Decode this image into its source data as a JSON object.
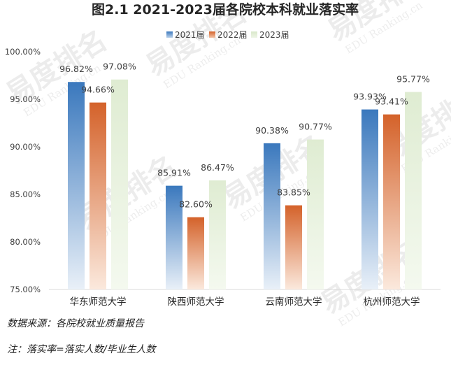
{
  "chart_data": {
    "type": "bar",
    "title": "图2.1 2021-2023届各院校本科就业落实率",
    "categories": [
      "华东师范大学",
      "陕西师范大学",
      "云南师范大学",
      "杭州师范大学"
    ],
    "series": [
      {
        "name": "2021届",
        "values": [
          96.82,
          85.91,
          90.38,
          93.93
        ],
        "labels": [
          "96.82%",
          "85.91%",
          "90.38%",
          "93.93%"
        ],
        "color": "#3f7cc0"
      },
      {
        "name": "2022届",
        "values": [
          94.66,
          82.6,
          83.85,
          93.41
        ],
        "labels": [
          "94.66%",
          "82.60%",
          "83.85%",
          "93.41%"
        ],
        "color": "#d9692e"
      },
      {
        "name": "2023届",
        "values": [
          97.08,
          86.47,
          90.77,
          95.77
        ],
        "labels": [
          "97.08%",
          "86.47%",
          "90.77%",
          "95.77%"
        ],
        "color": "#e4efd9"
      }
    ],
    "ylim": [
      75,
      100
    ],
    "yticks": [
      100,
      95,
      90,
      85,
      80,
      75
    ],
    "ytick_labels": [
      "100.00%",
      "95.00%",
      "90.00%",
      "85.00%",
      "80.00%",
      "75.00%"
    ],
    "xlabel": "",
    "ylabel": "",
    "grid": false,
    "legend_position": "top"
  },
  "footnotes": {
    "source": "数据来源：各院校就业质量报告",
    "note": "注：落实率=落实人数/毕业生人数"
  },
  "watermark": {
    "text": "易度排名",
    "subtext": "EDU Ranking.cn"
  }
}
